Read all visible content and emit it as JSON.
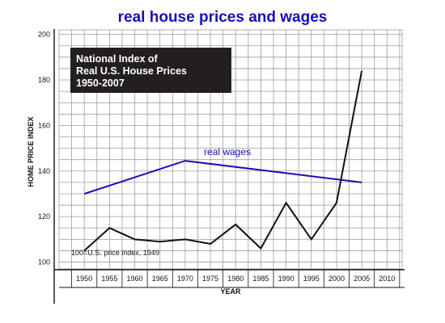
{
  "chart_data": {
    "type": "line",
    "title": "real house prices and wages",
    "xlabel": "YEAR",
    "ylabel": "HOME PRICE INDEX",
    "xlim": [
      1945,
      2013
    ],
    "ylim": [
      97,
      202
    ],
    "x_ticks": [
      "1950",
      "1955",
      "1960",
      "1965",
      "1970",
      "1975",
      "1980",
      "1985",
      "1990",
      "1995",
      "2000",
      "2005",
      "2010"
    ],
    "y_ticks": [
      "100",
      "120",
      "140",
      "160",
      "180",
      "200"
    ],
    "grid": true,
    "inset_title": [
      "National Index of",
      "Real U.S. House Prices",
      "1950-2007"
    ],
    "note": "100=U.S. price index, 1949",
    "series": [
      {
        "color": "#111111",
        "x": [
          1950,
          1955,
          1960,
          1965,
          1970,
          1975,
          1980,
          1985,
          1990,
          1995,
          2000,
          2005
        ],
        "y": [
          105,
          115,
          110,
          109,
          110,
          108,
          116.5,
          106,
          126,
          110,
          126,
          184
        ]
      },
      {
        "name": "real wages",
        "color": "#1a0fb4",
        "x": [
          1950,
          1970,
          2005
        ],
        "y": [
          130,
          144.5,
          135
        ]
      }
    ]
  }
}
